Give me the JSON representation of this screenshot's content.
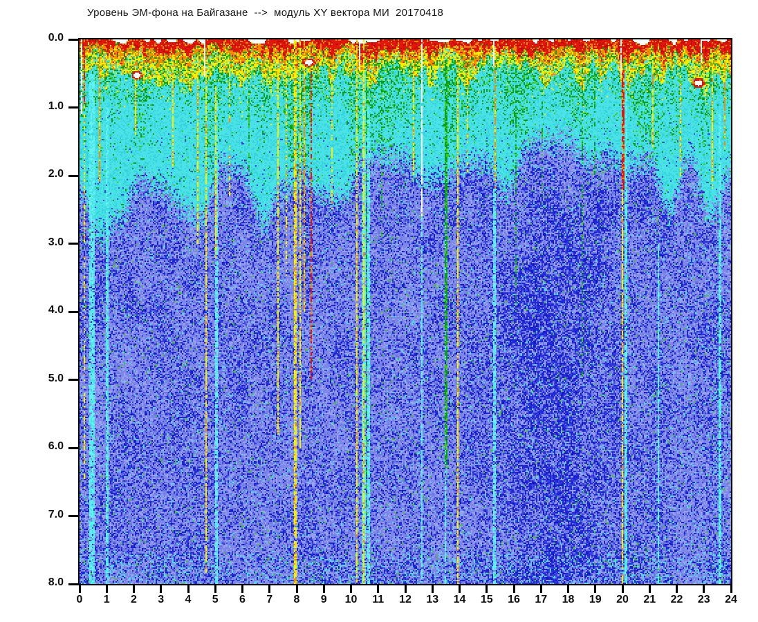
{
  "chart_data": {
    "type": "heatmap",
    "title": "Уровень ЭМ-фона на Байгазане  -->  модуль XY вектора МИ  20170418",
    "station": "Байгазан",
    "quantity": "модуль XY вектора МИ",
    "date": "20170418",
    "x_range_hours": [
      0,
      24
    ],
    "y_range": [
      0,
      8
    ],
    "x_ticks": [
      0,
      1,
      2,
      3,
      4,
      5,
      6,
      7,
      8,
      9,
      10,
      11,
      12,
      13,
      14,
      15,
      16,
      17,
      18,
      19,
      20,
      21,
      22,
      23,
      24
    ],
    "y_ticks": [
      "0.0",
      "1.0",
      "2.0",
      "3.0",
      "4.0",
      "5.0",
      "6.0",
      "7.0",
      "8.0"
    ],
    "legend": "none",
    "grid": "off",
    "seed": 20170418,
    "palette": {
      "white": "#ffffff",
      "red": "#e3160d",
      "red2": "#c00d06",
      "orange": "#f28d00",
      "yellow": "#f6f000",
      "green": "#089e1c",
      "green2": "#3fca16",
      "cyan_bg": "#4ae2e6",
      "cyan_bg2": "#36d4dc",
      "cyan_bright": "#62f2f2",
      "body_mid": "#7d87e9",
      "body_light": "#99a1f1",
      "body_dark": "#6b75e1",
      "dot_dark": "#1f27d6",
      "dot_darker": "#1318c0",
      "dot_mid": "#3b43e3",
      "dot_cyan": "#52d8ee"
    },
    "depth_bands": [
      {
        "depth": "0.0-0.3",
        "dominant": "red"
      },
      {
        "depth": "0.2-0.5",
        "dominant": "orange"
      },
      {
        "depth": "0.3-1.0",
        "dominant": "yellow"
      },
      {
        "depth": "0.5-1.8",
        "dominant": "green speckle over cyan"
      },
      {
        "depth": "1.3-2.8",
        "dominant": "cyan fading to blue"
      },
      {
        "depth": "2.0-8.0",
        "dominant": "periwinkle blue with dark blue speckle"
      }
    ],
    "thin_band_intervals": [
      [
        11.0,
        11.9
      ],
      [
        15.4,
        16.9
      ]
    ],
    "green_domes": [
      {
        "hour": 2.2,
        "width": 0.5,
        "depth": 1.9
      },
      {
        "hour": 4.9,
        "width": 0.5,
        "depth": 2.6
      },
      {
        "hour": 8.05,
        "width": 0.6,
        "depth": 3.2
      },
      {
        "hour": 10.45,
        "width": 0.8,
        "depth": 2.6
      },
      {
        "hour": 11.3,
        "width": 0.7,
        "depth": 2.2
      },
      {
        "hour": 13.7,
        "width": 0.5,
        "depth": 2.2
      },
      {
        "hour": 16.2,
        "width": 0.9,
        "depth": 2.0
      },
      {
        "hour": 18.6,
        "width": 0.5,
        "depth": 1.8
      },
      {
        "hour": 20.9,
        "width": 0.8,
        "depth": 2.4
      },
      {
        "hour": 23.0,
        "width": 0.6,
        "depth": 1.9
      }
    ],
    "dark_patch": {
      "hour_center": 17.6,
      "hour_sigma": 2.0,
      "depth_start": 1.6,
      "strength": 0.3
    },
    "streaks": [
      {
        "hour": 0.17,
        "from": 0.0,
        "to": 0.95,
        "color": "red",
        "width": 0.08
      },
      {
        "hour": 0.17,
        "from": 0.95,
        "to": 6.6,
        "color": "yellow",
        "width": 0.06,
        "dotted": true
      },
      {
        "hour": 0.72,
        "from": 0.25,
        "to": 2.1,
        "color": "orange",
        "width": 0.05
      },
      {
        "hour": 2.06,
        "from": 0.2,
        "to": 1.4,
        "color": "yellow",
        "width": 0.05
      },
      {
        "hour": 2.5,
        "from": 0.3,
        "to": 1.1,
        "color": "yellow",
        "width": 0.04,
        "dotted": true
      },
      {
        "hour": 3.46,
        "from": 0.25,
        "to": 1.9,
        "color": "yellow",
        "width": 0.05
      },
      {
        "hour": 4.35,
        "from": 0.2,
        "to": 3.0,
        "color": "yellow",
        "width": 0.05
      },
      {
        "hour": 4.68,
        "from": 0.45,
        "to": 7.85,
        "color": "yellow",
        "width": 0.06
      },
      {
        "hour": 5.03,
        "from": 0.7,
        "to": 3.2,
        "color": "yellow",
        "width": 0.05
      },
      {
        "hour": 5.55,
        "from": 0.3,
        "to": 2.3,
        "color": "yellow",
        "width": 0.05,
        "dotted": true
      },
      {
        "hour": 6.22,
        "from": 0.3,
        "to": 2.0,
        "color": "green",
        "width": 0.05,
        "dotted": true
      },
      {
        "hour": 7.3,
        "from": 0.2,
        "to": 5.8,
        "color": "yellow",
        "width": 0.05
      },
      {
        "hour": 7.62,
        "from": 0.3,
        "to": 3.5,
        "color": "yellow",
        "width": 0.05,
        "dotted": true
      },
      {
        "hour": 7.95,
        "from": 0.0,
        "to": 8.0,
        "color": "yellow",
        "width": 0.09
      },
      {
        "hour": 8.12,
        "from": 0.0,
        "to": 6.0,
        "color": "yellow",
        "width": 0.06
      },
      {
        "hour": 8.3,
        "from": 0.0,
        "to": 4.0,
        "color": "orange",
        "width": 0.05
      },
      {
        "hour": 8.52,
        "from": 0.1,
        "to": 5.0,
        "color": "red",
        "width": 0.06
      },
      {
        "hour": 9.3,
        "from": 0.5,
        "to": 2.5,
        "color": "yellow",
        "width": 0.04,
        "dotted": true
      },
      {
        "hour": 10.2,
        "from": 0.0,
        "to": 8.0,
        "color": "yellow",
        "width": 0.06
      },
      {
        "hour": 10.45,
        "from": 0.0,
        "to": 8.0,
        "color": "yellow",
        "width": 0.05
      },
      {
        "hour": 10.58,
        "from": 0.0,
        "to": 7.0,
        "color": "green",
        "width": 0.05,
        "dotted": true
      },
      {
        "hour": 11.15,
        "from": 0.5,
        "to": 3.0,
        "color": "green",
        "width": 0.05,
        "dotted": true
      },
      {
        "hour": 12.3,
        "from": 0.35,
        "to": 2.0,
        "color": "yellow",
        "width": 0.05
      },
      {
        "hour": 13.5,
        "from": 0.3,
        "to": 6.3,
        "color": "green",
        "width": 0.07
      },
      {
        "hour": 13.95,
        "from": 0.2,
        "to": 8.0,
        "color": "yellow",
        "width": 0.06
      },
      {
        "hour": 14.3,
        "from": 0.5,
        "to": 2.0,
        "color": "yellow",
        "width": 0.04,
        "dotted": true
      },
      {
        "hour": 15.3,
        "from": 0.35,
        "to": 2.2,
        "color": "orange",
        "width": 0.05
      },
      {
        "hour": 16.1,
        "from": 0.5,
        "to": 4.0,
        "color": "green",
        "width": 0.05,
        "dotted": true
      },
      {
        "hour": 17.05,
        "from": 0.5,
        "to": 2.5,
        "color": "green",
        "width": 0.04,
        "dotted": true
      },
      {
        "hour": 18.5,
        "from": 0.4,
        "to": 5.0,
        "color": "green",
        "width": 0.05,
        "dotted": true
      },
      {
        "hour": 19.0,
        "from": 0.5,
        "to": 2.0,
        "color": "green",
        "width": 0.04,
        "dotted": true
      },
      {
        "hour": 20.02,
        "from": 0.45,
        "to": 2.2,
        "color": "red",
        "width": 0.07
      },
      {
        "hour": 20.02,
        "from": 2.2,
        "to": 8.0,
        "color": "yellow",
        "width": 0.06
      },
      {
        "hour": 21.1,
        "from": 0.3,
        "to": 1.6,
        "color": "yellow",
        "width": 0.05
      },
      {
        "hour": 22.15,
        "from": 0.3,
        "to": 2.0,
        "color": "yellow",
        "width": 0.05,
        "dotted": true
      },
      {
        "hour": 23.3,
        "from": 0.2,
        "to": 2.2,
        "color": "yellow",
        "width": 0.06
      },
      {
        "hour": 23.75,
        "from": 0.3,
        "to": 1.6,
        "color": "orange",
        "width": 0.05
      }
    ],
    "cyan_columns": [
      {
        "from_hour": 0.34,
        "to_hour": 0.55,
        "from": 0.5,
        "to": 8
      },
      {
        "from_hour": 0.95,
        "to_hour": 1.06,
        "from": 1.0,
        "to": 8
      },
      {
        "from_hour": 5.0,
        "to_hour": 5.09,
        "from": 0.9,
        "to": 8
      },
      {
        "from_hour": 10.38,
        "to_hour": 10.53,
        "from": 0.5,
        "to": 8
      },
      {
        "from_hour": 10.62,
        "to_hour": 10.7,
        "from": 1.0,
        "to": 8
      },
      {
        "from_hour": 12.6,
        "to_hour": 12.66,
        "from": 2.6,
        "to": 8
      },
      {
        "from_hour": 13.43,
        "to_hour": 13.5,
        "from": 2.0,
        "to": 8
      },
      {
        "from_hour": 15.25,
        "to_hour": 15.33,
        "from": 2.2,
        "to": 8
      },
      {
        "from_hour": 20.06,
        "to_hour": 20.2,
        "from": 0.5,
        "to": 8
      },
      {
        "from_hour": 21.3,
        "to_hour": 21.36,
        "from": 3.0,
        "to": 8
      },
      {
        "from_hour": 23.56,
        "to_hour": 23.64,
        "from": 1.0,
        "to": 8
      }
    ],
    "white_gaps": [
      {
        "hour": 0.08,
        "width": 0.07,
        "from": 0,
        "to": 1.1
      },
      {
        "hour": 4.63,
        "width": 0.06,
        "from": 0,
        "to": 0.55
      },
      {
        "hour": 10.33,
        "width": 0.05,
        "from": 0,
        "to": 0.45
      },
      {
        "hour": 12.62,
        "width": 0.05,
        "from": 0,
        "to": 2.6
      },
      {
        "hour": 15.27,
        "width": 0.05,
        "from": 0,
        "to": 0.4
      },
      {
        "hour": 19.95,
        "width": 0.06,
        "from": 0,
        "to": 0.55
      },
      {
        "hour": 22.9,
        "width": 0.05,
        "from": 0,
        "to": 0.35
      }
    ],
    "hotspots": [
      {
        "hour": 2.1,
        "depth": 0.52,
        "rx": 0.2,
        "ry": 0.06
      },
      {
        "hour": 8.42,
        "depth": 0.33,
        "rx": 0.24,
        "ry": 0.06
      },
      {
        "hour": 22.78,
        "depth": 0.63,
        "rx": 0.22,
        "ry": 0.065
      }
    ]
  }
}
